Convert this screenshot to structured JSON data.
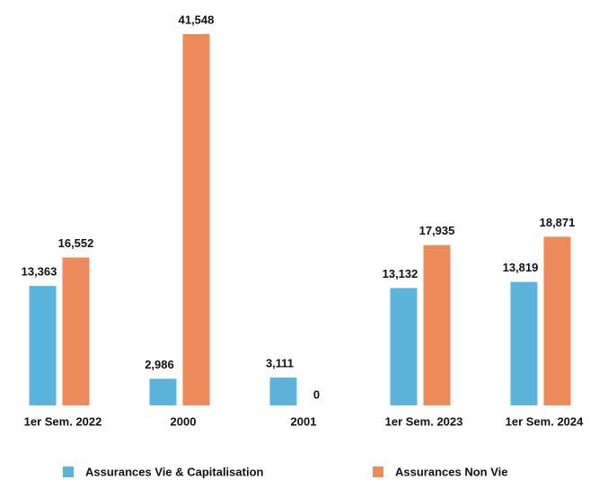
{
  "chart_data": {
    "type": "bar",
    "categories": [
      "1er Sem. 2022",
      "2000",
      "2001",
      "1er Sem. 2023",
      "1er Sem. 2024"
    ],
    "series": [
      {
        "name": "Assurances Vie & Capitalisation",
        "color": "#5ab4dc",
        "values": [
          13363,
          2986,
          3111,
          13132,
          13819
        ],
        "value_labels": [
          "13,363",
          "2,986",
          "3,111",
          "13,132",
          "13,819"
        ]
      },
      {
        "name": "Assurances Non Vie",
        "color": "#ec8a5a",
        "values": [
          16552,
          41548,
          0,
          17935,
          18871
        ],
        "value_labels": [
          "16,552",
          "41,548",
          "0",
          "17,935",
          "18,871"
        ]
      }
    ]
  }
}
